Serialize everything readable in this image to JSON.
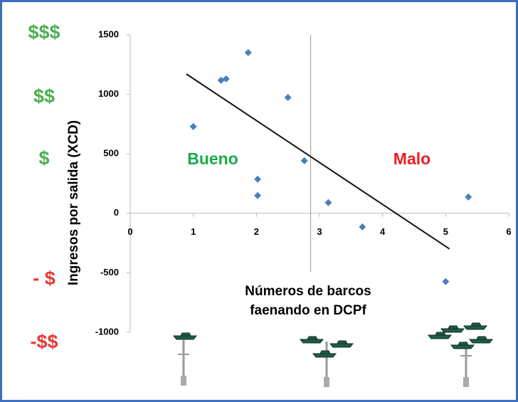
{
  "chart_data": {
    "type": "scatter",
    "x_label": "Números de barcos faenando en DCPf",
    "y_label": "Ingresos por salida (XCD)",
    "x": [
      1.0,
      1.44,
      1.52,
      1.87,
      2.02,
      2.02,
      2.5,
      2.76,
      3.14,
      3.68,
      5.0,
      5.36
    ],
    "series": [
      {
        "color": "#4a7fc1",
        "values": [
          729,
          1118,
          1130,
          1351,
          287,
          149,
          974,
          442,
          90,
          -114,
          -574,
          137
        ]
      }
    ],
    "trendline": {
      "x": [
        0.89,
        5.06
      ],
      "y": [
        1171,
        -299
      ],
      "color": "#111111"
    },
    "divider_x": 2.86,
    "xlim": [
      0,
      6
    ],
    "ylim": [
      -1000,
      1500
    ],
    "xticks": [
      0,
      1,
      2,
      3,
      4,
      5,
      6
    ],
    "yticks": [
      -1000,
      -500,
      0,
      500,
      1000,
      1500
    ],
    "annotations": [
      {
        "text": "Bueno",
        "color": "#1aab4b"
      },
      {
        "text": "Malo",
        "color": "#ee1c24"
      }
    ],
    "money_labels": [
      {
        "text": "$$$",
        "color": "#4caf50"
      },
      {
        "text": "$$",
        "color": "#4caf50"
      },
      {
        "text": "$",
        "color": "#4caf50"
      },
      {
        "text": "- $",
        "color": "#e53935"
      },
      {
        "text": "-$$",
        "color": "#e53935"
      }
    ]
  }
}
